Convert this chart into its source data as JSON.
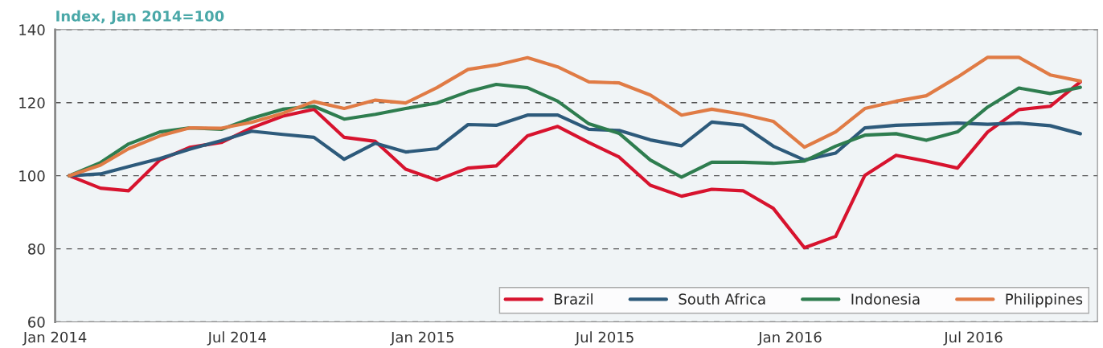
{
  "chart_data": {
    "type": "line",
    "ylabel": "Index, Jan 2014=100",
    "x": [
      "2014-01-15",
      "2014-02-15",
      "2014-03-15",
      "2014-04-15",
      "2014-05-15",
      "2014-06-15",
      "2014-07-15",
      "2014-08-15",
      "2014-09-15",
      "2014-10-15",
      "2014-11-15",
      "2014-12-15",
      "2015-01-15",
      "2015-02-15",
      "2015-03-15",
      "2015-04-15",
      "2015-05-15",
      "2015-06-15",
      "2015-07-15",
      "2015-08-15",
      "2015-09-15",
      "2015-10-15",
      "2015-11-15",
      "2015-12-15",
      "2016-01-15",
      "2016-02-15",
      "2016-03-15",
      "2016-04-15",
      "2016-05-15",
      "2016-06-15",
      "2016-07-15",
      "2016-08-15",
      "2016-09-15",
      "2016-10-15"
    ],
    "series": [
      {
        "name": "Brazil",
        "color": "#d7132e",
        "values": [
          100,
          96.6,
          95.9,
          104.3,
          107.8,
          109.1,
          113.1,
          116.3,
          118.2,
          110.5,
          109.4,
          101.8,
          98.8,
          102.1,
          102.7,
          110.9,
          113.5,
          109.1,
          105.1,
          97.4,
          94.4,
          96.3,
          95.9,
          91.1,
          80.3,
          83.4,
          100.1,
          105.6,
          104.0,
          102.1,
          112.0,
          118.1,
          119.0,
          125.7
        ]
      },
      {
        "name": "South Africa",
        "color": "#2d5a7b",
        "values": [
          100,
          100.5,
          102.5,
          104.7,
          107.3,
          109.6,
          112.2,
          111.3,
          110.5,
          104.5,
          108.9,
          106.5,
          107.4,
          114.0,
          113.8,
          116.6,
          116.6,
          112.7,
          112.4,
          109.8,
          108.2,
          114.7,
          113.8,
          108.1,
          104.3,
          106.2,
          113.1,
          113.8,
          114.1,
          114.4,
          114.1,
          114.4,
          113.7,
          111.5
        ]
      },
      {
        "name": "Indonesia",
        "color": "#2e7d4f",
        "values": [
          100,
          103.6,
          108.7,
          112.0,
          113.1,
          112.7,
          115.7,
          118.2,
          119.0,
          115.5,
          116.8,
          118.4,
          119.9,
          123.0,
          125.0,
          124.1,
          120.4,
          114.2,
          111.6,
          104.3,
          99.6,
          103.7,
          103.7,
          103.4,
          104.0,
          108.1,
          111.1,
          111.5,
          109.7,
          112.0,
          118.8,
          124.0,
          122.5,
          124.2
        ]
      },
      {
        "name": "Philippines",
        "color": "#e07b45",
        "values": [
          100,
          102.9,
          107.4,
          110.9,
          113.1,
          113.0,
          114.6,
          117.1,
          120.3,
          118.4,
          120.7,
          119.9,
          124.1,
          129.1,
          130.3,
          132.3,
          129.8,
          125.7,
          125.4,
          122.1,
          116.6,
          118.2,
          116.8,
          114.9,
          107.8,
          112.0,
          118.4,
          120.4,
          121.9,
          127.0,
          132.4,
          132.4,
          127.6,
          125.9
        ]
      }
    ],
    "xlim": [
      "2014-01-01",
      "2016-11-01"
    ],
    "xticks": [
      {
        "value": "2014-01-01",
        "label": "Jan 2014"
      },
      {
        "value": "2014-07-01",
        "label": "Jul 2014"
      },
      {
        "value": "2015-01-01",
        "label": "Jan 2015"
      },
      {
        "value": "2015-07-01",
        "label": "Jul 2015"
      },
      {
        "value": "2016-01-01",
        "label": "Jan 2016"
      },
      {
        "value": "2016-07-01",
        "label": "Jul 2016"
      }
    ],
    "ylim": [
      60,
      140
    ],
    "yticks": [
      60,
      80,
      100,
      120,
      140
    ],
    "grid": "y",
    "legend": "bottom right",
    "line_style": "solid",
    "marker": "none"
  }
}
